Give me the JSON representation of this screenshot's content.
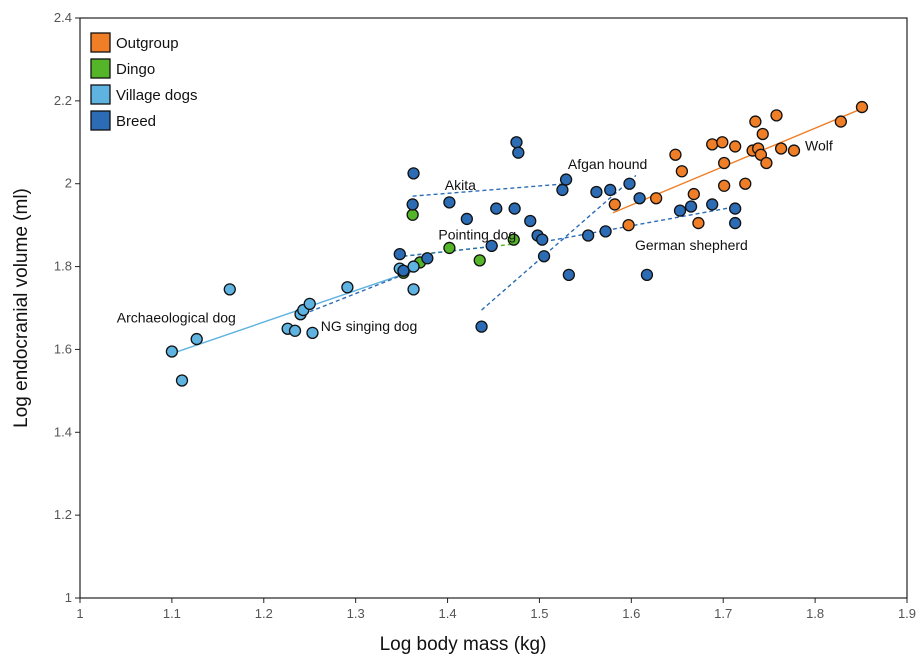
{
  "chart_data": {
    "type": "scatter",
    "xlabel": "Log body mass (kg)",
    "ylabel": "Log endocranial volume (ml)",
    "xlim": [
      1,
      1.9
    ],
    "ylim": [
      1,
      2.4
    ],
    "xticks": [
      "1",
      "1.1",
      "1.2",
      "1.3",
      "1.4",
      "1.5",
      "1.6",
      "1.7",
      "1.8",
      "1.9"
    ],
    "yticks": [
      "1",
      "1.2",
      "1.4",
      "1.6",
      "1.8",
      "2",
      "2.2",
      "2.4"
    ],
    "grid": false,
    "legend_position": "top-left",
    "series": [
      {
        "name": "Outgroup",
        "color": "#f07e26",
        "points": [
          [
            1.582,
            1.95
          ],
          [
            1.597,
            1.9
          ],
          [
            1.627,
            1.965
          ],
          [
            1.648,
            2.07
          ],
          [
            1.655,
            2.03
          ],
          [
            1.668,
            1.975
          ],
          [
            1.673,
            1.905
          ],
          [
            1.688,
            2.095
          ],
          [
            1.699,
            2.1
          ],
          [
            1.701,
            2.05
          ],
          [
            1.701,
            1.995
          ],
          [
            1.713,
            2.09
          ],
          [
            1.724,
            2.0
          ],
          [
            1.732,
            2.08
          ],
          [
            1.735,
            2.15
          ],
          [
            1.738,
            2.085
          ],
          [
            1.741,
            2.07
          ],
          [
            1.743,
            2.12
          ],
          [
            1.747,
            2.05
          ],
          [
            1.758,
            2.165
          ],
          [
            1.763,
            2.085
          ],
          [
            1.777,
            2.08
          ],
          [
            1.828,
            2.15
          ],
          [
            1.851,
            2.185
          ]
        ]
      },
      {
        "name": "Dingo",
        "color": "#55b528",
        "points": [
          [
            1.362,
            1.925
          ],
          [
            1.402,
            1.845
          ],
          [
            1.352,
            1.785
          ],
          [
            1.37,
            1.81
          ],
          [
            1.435,
            1.815
          ],
          [
            1.472,
            1.865
          ]
        ]
      },
      {
        "name": "Village dogs",
        "color": "#5eb3e0",
        "points": [
          [
            1.1,
            1.595
          ],
          [
            1.111,
            1.525
          ],
          [
            1.127,
            1.625
          ],
          [
            1.163,
            1.745
          ],
          [
            1.226,
            1.65
          ],
          [
            1.234,
            1.645
          ],
          [
            1.24,
            1.685
          ],
          [
            1.243,
            1.695
          ],
          [
            1.25,
            1.71
          ],
          [
            1.253,
            1.64
          ],
          [
            1.291,
            1.75
          ],
          [
            1.348,
            1.795
          ],
          [
            1.363,
            1.8
          ],
          [
            1.363,
            1.745
          ]
        ]
      },
      {
        "name": "Breed",
        "color": "#2c6cb5",
        "points": [
          [
            1.348,
            1.83
          ],
          [
            1.352,
            1.79
          ],
          [
            1.362,
            1.95
          ],
          [
            1.363,
            2.025
          ],
          [
            1.378,
            1.82
          ],
          [
            1.402,
            1.955
          ],
          [
            1.421,
            1.915
          ],
          [
            1.437,
            1.655
          ],
          [
            1.448,
            1.85
          ],
          [
            1.453,
            1.94
          ],
          [
            1.473,
            1.94
          ],
          [
            1.475,
            2.1
          ],
          [
            1.477,
            2.075
          ],
          [
            1.49,
            1.91
          ],
          [
            1.498,
            1.875
          ],
          [
            1.503,
            1.865
          ],
          [
            1.505,
            1.825
          ],
          [
            1.525,
            1.985
          ],
          [
            1.529,
            2.01
          ],
          [
            1.532,
            1.78
          ],
          [
            1.553,
            1.875
          ],
          [
            1.562,
            1.98
          ],
          [
            1.572,
            1.885
          ],
          [
            1.577,
            1.985
          ],
          [
            1.598,
            2.0
          ],
          [
            1.609,
            1.965
          ],
          [
            1.617,
            1.78
          ],
          [
            1.653,
            1.935
          ],
          [
            1.665,
            1.945
          ],
          [
            1.688,
            1.95
          ],
          [
            1.713,
            1.94
          ],
          [
            1.713,
            1.905
          ]
        ]
      }
    ],
    "fit_lines": [
      {
        "series": "Outgroup",
        "style": "solid",
        "color": "#f07e26",
        "from": [
          1.58,
          1.93
        ],
        "to": [
          1.855,
          2.185
        ]
      },
      {
        "series": "Dingo",
        "style": "dashed",
        "color": "#55b528",
        "from": [
          1.352,
          1.825
        ],
        "to": [
          1.475,
          1.855
        ]
      },
      {
        "series": "Village dogs",
        "style": "solid",
        "color": "#5eb3e0",
        "from": [
          1.1,
          1.59
        ],
        "to": [
          1.363,
          1.79
        ]
      },
      {
        "series": "Breed",
        "label": "Akita",
        "style": "dashed",
        "color": "#2c6cb5",
        "from": [
          1.362,
          1.97
        ],
        "to": [
          1.53,
          2.0
        ]
      },
      {
        "series": "Breed",
        "label": "Afgan hound",
        "style": "dashed",
        "color": "#2c6cb5",
        "from": [
          1.437,
          1.695
        ],
        "to": [
          1.605,
          2.02
        ]
      },
      {
        "series": "Breed",
        "label": "German shepherd",
        "style": "dashed",
        "color": "#2c6cb5",
        "from": [
          1.505,
          1.86
        ],
        "to": [
          1.715,
          1.945
        ]
      },
      {
        "series": "Breed",
        "label": "NG singing dog",
        "style": "dashed",
        "color": "#2c6cb5",
        "from": [
          1.243,
          1.685
        ],
        "to": [
          1.363,
          1.79
        ]
      },
      {
        "series": "Breed",
        "label": "Pointing dog",
        "style": "dashed",
        "color": "#2c6cb5",
        "from": [
          1.352,
          1.825
        ],
        "to": [
          1.455,
          1.85
        ]
      }
    ],
    "annotations": [
      {
        "text": "Archaeological dog",
        "x": 1.04,
        "y": 1.665
      },
      {
        "text": "NG singing dog",
        "x": 1.262,
        "y": 1.645
      },
      {
        "text": "Pointing dog",
        "x": 1.39,
        "y": 1.865
      },
      {
        "text": "Akita",
        "x": 1.397,
        "y": 1.985
      },
      {
        "text": "Afgan hound",
        "x": 1.531,
        "y": 2.035
      },
      {
        "text": "German shepherd",
        "x": 1.604,
        "y": 1.84
      },
      {
        "text": "Wolf",
        "x": 1.789,
        "y": 2.08
      }
    ]
  }
}
